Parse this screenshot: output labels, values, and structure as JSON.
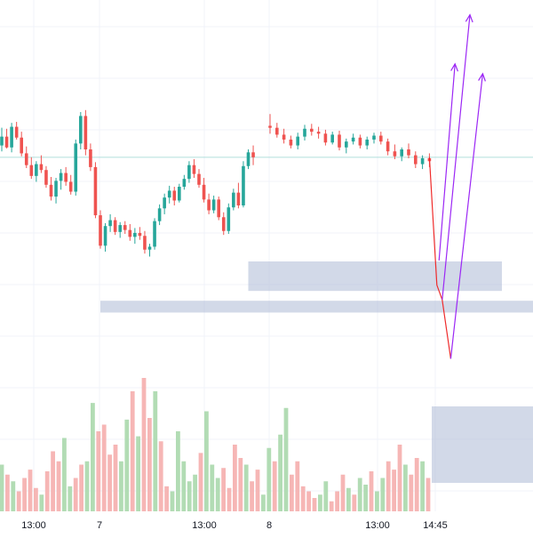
{
  "chart_data": {
    "type": "candlestick",
    "x_axis": {
      "tick_labels": [
        {
          "label": "13:00",
          "session": 0,
          "hour": 13
        },
        {
          "label": "7",
          "session": 1,
          "hour": 0
        },
        {
          "label": "13:00",
          "session": 1,
          "hour": 13
        },
        {
          "label": "8",
          "session": 2,
          "hour": 0
        },
        {
          "label": "13:00",
          "session": 2,
          "hour": 13
        },
        {
          "label": "14:45",
          "session": 2,
          "hour": 14.75
        }
      ]
    },
    "price_line": 100.0,
    "ohlc_series": [
      [
        101.2,
        103.0,
        100.6,
        102.1
      ],
      [
        102.1,
        102.9,
        100.9,
        101.0
      ],
      [
        101.0,
        103.5,
        100.5,
        103.1
      ],
      [
        103.1,
        103.6,
        101.8,
        102.0
      ],
      [
        102.0,
        102.6,
        100.1,
        100.4
      ],
      [
        100.4,
        101.1,
        98.9,
        99.2
      ],
      [
        99.2,
        100.0,
        97.8,
        98.1
      ],
      [
        98.1,
        99.6,
        97.5,
        99.3
      ],
      [
        99.3,
        100.2,
        98.4,
        98.7
      ],
      [
        98.7,
        99.1,
        96.9,
        97.2
      ],
      [
        97.2,
        98.0,
        95.6,
        96.0
      ],
      [
        96.0,
        97.9,
        95.3,
        97.6
      ],
      [
        97.6,
        98.8,
        96.7,
        98.4
      ],
      [
        98.4,
        99.0,
        97.1,
        97.5
      ],
      [
        97.5,
        98.2,
        96.2,
        96.5
      ],
      [
        96.5,
        101.8,
        96.1,
        101.4
      ],
      [
        101.4,
        104.6,
        100.8,
        104.2
      ],
      [
        104.2,
        104.8,
        100.2,
        100.8
      ],
      [
        100.8,
        101.4,
        98.6,
        99.0
      ],
      [
        99.0,
        99.5,
        93.8,
        94.1
      ],
      [
        94.1,
        94.6,
        90.7,
        91.0
      ],
      [
        91.0,
        93.3,
        90.4,
        93.0
      ],
      [
        93.0,
        94.2,
        92.4,
        93.6
      ],
      [
        93.6,
        93.9,
        92.1,
        92.4
      ],
      [
        92.4,
        93.4,
        91.8,
        93.1
      ],
      [
        93.1,
        93.5,
        92.2,
        92.6
      ],
      [
        92.6,
        93.2,
        91.5,
        91.9
      ],
      [
        91.9,
        92.8,
        91.2,
        92.3
      ],
      [
        92.3,
        92.9,
        91.6,
        92.0
      ],
      [
        92.0,
        92.5,
        90.2,
        90.6
      ],
      [
        90.6,
        91.2,
        89.9,
        90.9
      ],
      [
        90.9,
        93.8,
        90.6,
        93.5
      ],
      [
        93.5,
        95.2,
        93.1,
        94.8
      ],
      [
        94.8,
        96.3,
        94.2,
        95.9
      ],
      [
        95.9,
        97.1,
        95.3,
        96.6
      ],
      [
        96.6,
        97.0,
        95.1,
        95.6
      ],
      [
        95.6,
        97.3,
        95.4,
        97.0
      ],
      [
        97.0,
        98.2,
        96.7,
        97.8
      ],
      [
        97.8,
        99.6,
        97.4,
        99.2
      ],
      [
        99.2,
        99.8,
        97.9,
        98.3
      ],
      [
        98.3,
        98.8,
        96.9,
        97.2
      ],
      [
        97.2,
        97.9,
        95.4,
        95.7
      ],
      [
        95.7,
        96.3,
        94.2,
        94.6
      ],
      [
        94.6,
        96.1,
        94.3,
        95.7
      ],
      [
        95.7,
        96.0,
        93.6,
        93.9
      ],
      [
        93.9,
        94.4,
        92.1,
        92.5
      ],
      [
        92.5,
        95.3,
        92.2,
        94.9
      ],
      [
        94.9,
        96.8,
        94.6,
        96.4
      ],
      [
        96.4,
        97.4,
        94.8,
        95.1
      ],
      [
        95.1,
        99.6,
        94.9,
        99.1
      ],
      [
        99.1,
        100.8,
        98.8,
        100.5
      ],
      [
        100.5,
        101.2,
        99.2,
        100.0
      ],
      [
        103.2,
        104.4,
        102.4,
        103.0
      ],
      [
        103.0,
        103.5,
        102.0,
        102.3
      ],
      [
        102.3,
        102.9,
        101.4,
        101.8
      ],
      [
        101.8,
        102.2,
        100.9,
        101.2
      ],
      [
        101.2,
        102.5,
        100.8,
        102.1
      ],
      [
        102.1,
        103.3,
        101.7,
        102.9
      ],
      [
        102.9,
        103.4,
        102.2,
        102.6
      ],
      [
        102.6,
        103.1,
        101.9,
        102.4
      ],
      [
        102.4,
        102.8,
        101.2,
        101.5
      ],
      [
        101.5,
        102.6,
        101.3,
        102.3
      ],
      [
        102.3,
        102.7,
        100.7,
        101.0
      ],
      [
        101.0,
        101.9,
        100.4,
        101.6
      ],
      [
        101.6,
        102.4,
        101.3,
        102.0
      ],
      [
        102.0,
        102.3,
        100.9,
        101.2
      ],
      [
        101.2,
        102.1,
        100.8,
        101.8
      ],
      [
        101.8,
        102.5,
        101.4,
        102.2
      ],
      [
        102.2,
        102.6,
        101.3,
        101.6
      ],
      [
        101.6,
        101.9,
        100.2,
        100.6
      ],
      [
        100.6,
        101.3,
        99.8,
        100.1
      ],
      [
        100.1,
        101.0,
        99.6,
        100.8
      ],
      [
        100.8,
        101.4,
        99.9,
        100.2
      ],
      [
        100.2,
        100.6,
        98.9,
        99.3
      ],
      [
        99.3,
        100.2,
        98.8,
        99.9
      ],
      [
        99.9,
        100.4,
        99.0,
        99.6
      ]
    ],
    "volume_series": [
      28,
      22,
      18,
      12,
      20,
      25,
      14,
      10,
      24,
      36,
      30,
      44,
      15,
      20,
      28,
      30,
      65,
      48,
      52,
      34,
      40,
      30,
      55,
      72,
      45,
      80,
      56,
      72,
      42,
      15,
      12,
      48,
      30,
      18,
      22,
      35,
      60,
      28,
      20,
      26,
      14,
      40,
      32,
      28,
      18,
      25,
      10,
      38,
      30,
      46,
      62,
      22,
      30,
      15,
      12,
      8,
      10,
      18,
      6,
      12,
      22,
      14,
      10,
      20,
      16,
      24,
      12,
      20,
      30,
      25,
      40,
      28,
      22,
      32,
      30,
      20
    ],
    "annotations": {
      "projection_path": [
        [
          0.0,
          100.0
        ],
        [
          0.35,
          87.0
        ],
        [
          0.6,
          85.5
        ],
        [
          1.0,
          79.5
        ]
      ],
      "projection_arrows": [
        {
          "from": [
            0.45,
            89.5
          ],
          "to": [
            1.2,
            109.5
          ]
        },
        {
          "from": [
            0.6,
            85.5
          ],
          "to": [
            1.9,
            114.5
          ]
        },
        {
          "from": [
            1.0,
            79.5
          ],
          "to": [
            2.5,
            108.5
          ]
        }
      ],
      "zones": [
        {
          "from_index": 50,
          "to_index": 999,
          "top": 89.4,
          "bottom": 86.4
        },
        {
          "from_index": 20,
          "to_index": 999,
          "top": 85.4,
          "bottom": 84.2
        }
      ],
      "volume_box": true
    },
    "colors": {
      "up": "#26a69a",
      "down": "#ef5350",
      "up_volume": "#a5d6a7",
      "down_volume": "#f4a9a8",
      "grid": "#f0f3fa",
      "price_line": "#b2dfdb",
      "zone_fill": "#b4bfd9",
      "projection": "#ef2b2b",
      "arrow": "#9c27f5"
    }
  }
}
